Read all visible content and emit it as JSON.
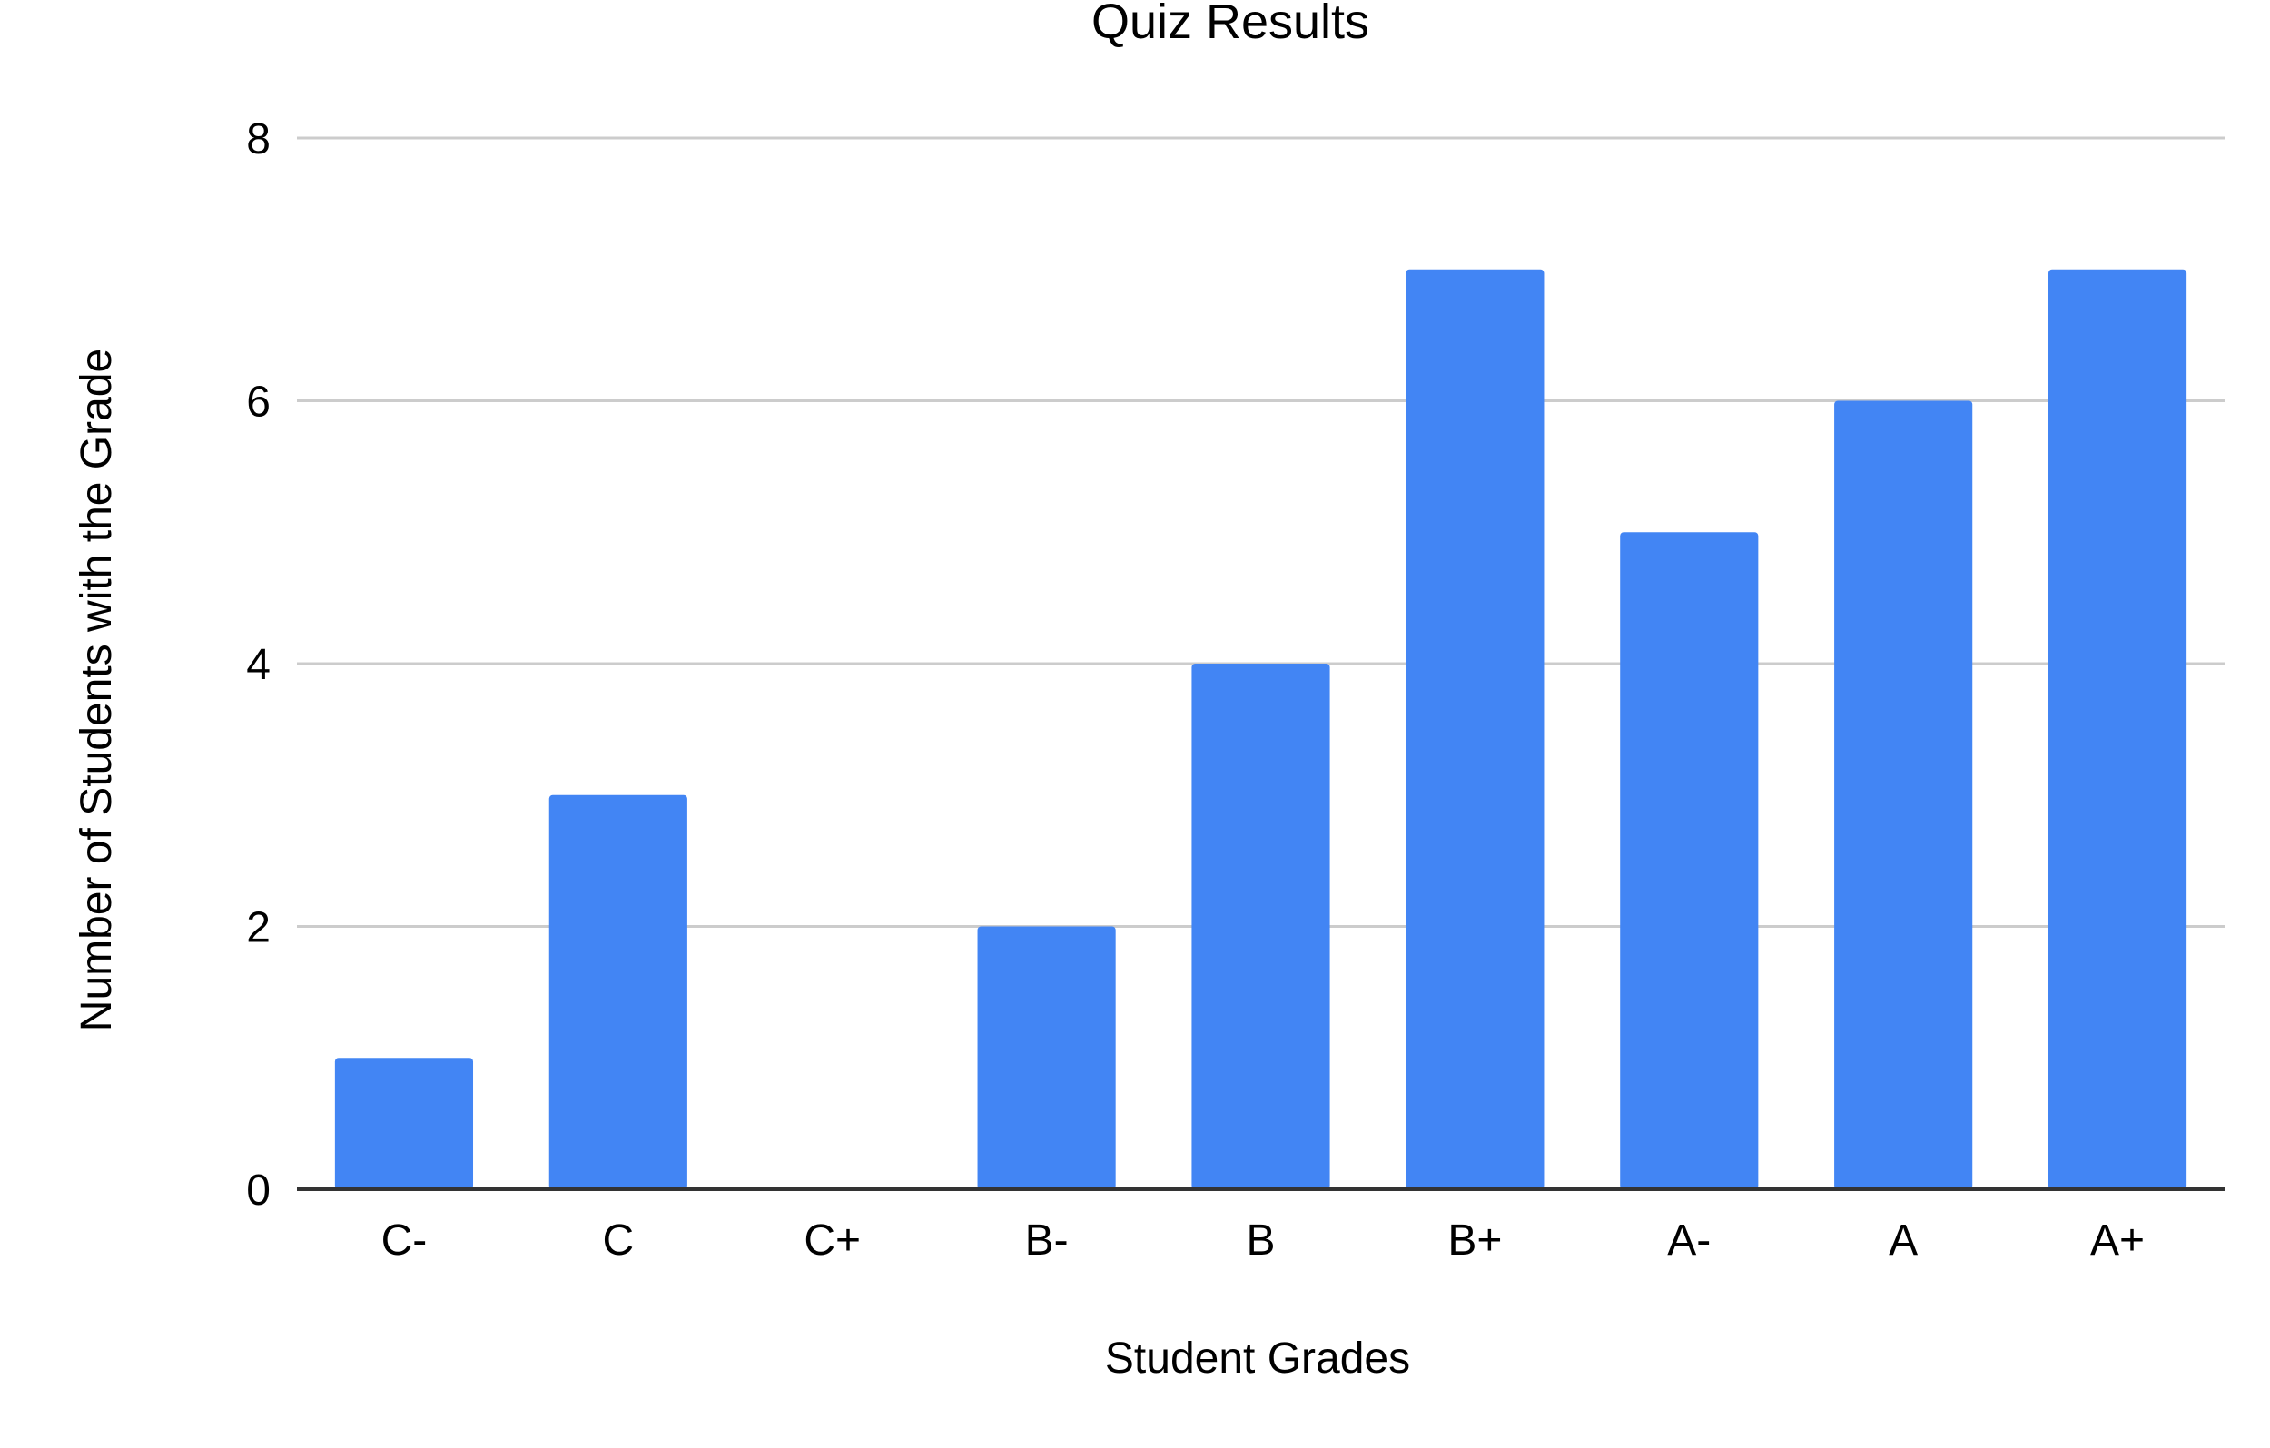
{
  "chart_data": {
    "type": "bar",
    "title": "Quiz Results",
    "xlabel": "Student Grades",
    "ylabel": "Number of Students with the Grade",
    "categories": [
      "C-",
      "C",
      "C+",
      "B-",
      "B",
      "B+",
      "A-",
      "A",
      "A+"
    ],
    "values": [
      1,
      3,
      0,
      2,
      4,
      7,
      5,
      6,
      7
    ],
    "ylim": [
      0,
      8
    ],
    "yticks": [
      "0",
      "2",
      "4",
      "6",
      "8"
    ],
    "grid": true,
    "legend": "none",
    "bar_color": "#4285f4",
    "gridline_color": "#cccccc",
    "baseline_color": "#333333"
  }
}
